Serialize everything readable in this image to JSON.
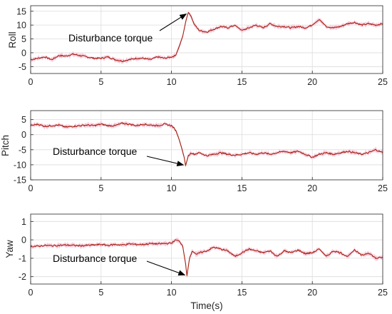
{
  "colors": {
    "signal": "#a41f10",
    "envelope": "#f7c8d8",
    "grid": "#dcdcdc",
    "axis": "#262626"
  },
  "xlabel": "Time(s)",
  "chart_data": [
    {
      "type": "line",
      "ylabel": "Roll",
      "xlim": [
        0,
        25
      ],
      "ylim": [
        -7.5,
        17
      ],
      "xticks": [
        0,
        5,
        10,
        15,
        20,
        25
      ],
      "yticks": [
        -5,
        0,
        5,
        10,
        15
      ],
      "grid": true,
      "annotation": {
        "text": "Disturbance torque",
        "arrow_to": [
          11.2,
          14.8
        ]
      },
      "series": [
        {
          "x": [
            0,
            0.5,
            1,
            1.5,
            2,
            2.5,
            3,
            3.5,
            4,
            4.5,
            5,
            5.5,
            6,
            6.5,
            7,
            7.5,
            8,
            8.5,
            9,
            9.5,
            10,
            10.3,
            10.6,
            10.8,
            11.0,
            11.2,
            11.4,
            11.6,
            11.8,
            12,
            12.5,
            13,
            13.5,
            14,
            14.5,
            15,
            15.5,
            16,
            16.5,
            17,
            17.5,
            18,
            18.5,
            19,
            19.5,
            20,
            20.5,
            21,
            21.5,
            22,
            22.5,
            23,
            23.5,
            24,
            24.5,
            25
          ],
          "y": [
            -2.5,
            -2.0,
            -1.5,
            -2.5,
            -1.0,
            -1.2,
            -0.5,
            -1.0,
            -1.5,
            -2.0,
            -2.0,
            -1.5,
            -2.5,
            -3.0,
            -2.5,
            -2.0,
            -2.0,
            -2.5,
            -1.5,
            -2.0,
            -1.5,
            -1.0,
            3.0,
            6.0,
            11.0,
            14.8,
            13.0,
            10.5,
            9.0,
            8.0,
            7.5,
            8.5,
            9.5,
            9.0,
            10.0,
            8.0,
            9.0,
            10.0,
            9.0,
            10.5,
            9.5,
            9.5,
            9.0,
            9.5,
            9.0,
            10.0,
            12.0,
            9.5,
            9.0,
            9.5,
            10.5,
            11.0,
            10.0,
            10.5,
            10.0,
            10.5
          ]
        }
      ]
    },
    {
      "type": "line",
      "ylabel": "Pitch",
      "xlim": [
        0,
        25
      ],
      "ylim": [
        -15,
        8
      ],
      "xticks": [
        0,
        5,
        10,
        15,
        20,
        25
      ],
      "yticks": [
        -15,
        -10,
        -5,
        0,
        5
      ],
      "grid": true,
      "annotation": {
        "text": "Disturbance torque",
        "arrow_to": [
          11.0,
          -10.3
        ]
      },
      "series": [
        {
          "x": [
            0,
            0.5,
            1,
            1.5,
            2,
            2.5,
            3,
            3.5,
            4,
            4.5,
            5,
            5.5,
            6,
            6.5,
            7,
            7.5,
            8,
            8.5,
            9,
            9.5,
            10,
            10.3,
            10.5,
            10.7,
            10.9,
            11.0,
            11.2,
            11.4,
            11.6,
            12,
            12.5,
            13,
            13.5,
            14,
            14.5,
            15,
            15.5,
            16,
            16.5,
            17,
            17.5,
            18,
            18.5,
            19,
            19.5,
            20,
            20.5,
            21,
            21.5,
            22,
            22.5,
            23,
            23.5,
            24,
            24.5,
            25
          ],
          "y": [
            3.0,
            3.5,
            2.8,
            3.0,
            3.2,
            2.5,
            2.8,
            3.0,
            3.2,
            3.0,
            3.5,
            3.0,
            3.0,
            3.8,
            3.5,
            3.0,
            3.5,
            3.2,
            3.0,
            3.5,
            3.0,
            1.5,
            -1.0,
            -4.0,
            -7.5,
            -10.3,
            -7.0,
            -6.0,
            -6.5,
            -6.0,
            -7.0,
            -6.5,
            -6.0,
            -6.5,
            -6.8,
            -6.5,
            -6.0,
            -6.5,
            -6.0,
            -6.5,
            -6.0,
            -5.5,
            -6.0,
            -5.5,
            -6.5,
            -7.5,
            -6.5,
            -6.0,
            -6.5,
            -6.0,
            -5.5,
            -6.0,
            -6.5,
            -6.0,
            -5.0,
            -6.0
          ]
        }
      ]
    },
    {
      "type": "line",
      "ylabel": "Yaw",
      "xlim": [
        0,
        25
      ],
      "ylim": [
        -2.4,
        1.4
      ],
      "xticks": [
        0,
        5,
        10,
        15,
        20,
        25
      ],
      "yticks": [
        -2,
        -1,
        0,
        1
      ],
      "grid": true,
      "annotation": {
        "text": "Disturbance torque",
        "arrow_to": [
          11.1,
          -1.95
        ]
      },
      "series": [
        {
          "x": [
            0,
            0.5,
            1,
            1.5,
            2,
            2.5,
            3,
            3.5,
            4,
            4.5,
            5,
            5.5,
            6,
            6.5,
            7,
            7.5,
            8,
            8.5,
            9,
            9.5,
            10,
            10.3,
            10.6,
            10.8,
            11.0,
            11.1,
            11.3,
            11.5,
            11.8,
            12,
            12.5,
            13,
            13.5,
            14,
            14.5,
            15,
            15.5,
            16,
            16.5,
            17,
            17.5,
            18,
            18.5,
            19,
            19.5,
            20,
            20.5,
            21,
            21.5,
            22,
            22.5,
            23,
            23.5,
            24,
            24.5,
            25
          ],
          "y": [
            -0.35,
            -0.35,
            -0.3,
            -0.32,
            -0.3,
            -0.28,
            -0.3,
            -0.32,
            -0.3,
            -0.28,
            -0.25,
            -0.3,
            -0.25,
            -0.28,
            -0.22,
            -0.25,
            -0.25,
            -0.2,
            -0.22,
            -0.2,
            -0.18,
            0.0,
            -0.1,
            -0.35,
            -1.3,
            -1.95,
            -0.9,
            -0.6,
            -0.8,
            -0.7,
            -0.6,
            -0.4,
            -0.5,
            -0.6,
            -0.9,
            -0.7,
            -0.5,
            -0.6,
            -0.7,
            -0.6,
            -0.9,
            -0.6,
            -0.7,
            -0.55,
            -0.75,
            -0.7,
            -0.5,
            -0.9,
            -0.6,
            -0.7,
            -0.9,
            -0.55,
            -0.85,
            -0.7,
            -1.0,
            -0.95
          ]
        }
      ]
    }
  ]
}
